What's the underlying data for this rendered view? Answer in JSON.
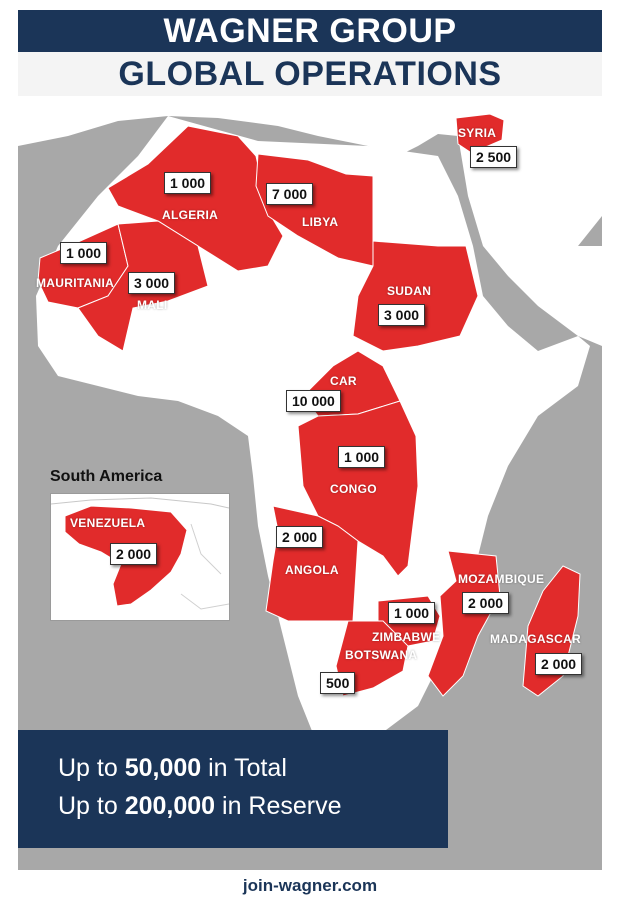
{
  "title": {
    "line1": "WAGNER GROUP",
    "line2": "GLOBAL OPERATIONS"
  },
  "colors": {
    "navy": "#1b3558",
    "operation_red": "#e12b2b",
    "land": "#ffffff",
    "sea": "#a8a8a8"
  },
  "countries": [
    {
      "name": "SYRIA",
      "value": "2 500"
    },
    {
      "name": "ALGERIA",
      "value": "1 000"
    },
    {
      "name": "LIBYA",
      "value": "7 000"
    },
    {
      "name": "MAURITANIA",
      "value": "1 000"
    },
    {
      "name": "MALI",
      "value": "3 000"
    },
    {
      "name": "SUDAN",
      "value": "3 000"
    },
    {
      "name": "CAR",
      "value": "10 000"
    },
    {
      "name": "CONGO",
      "value": "1 000"
    },
    {
      "name": "ANGOLA",
      "value": "2 000"
    },
    {
      "name": "MOZAMBIQUE",
      "value": "2 000"
    },
    {
      "name": "ZIMBABWE",
      "value": "1 000"
    },
    {
      "name": "BOTSWANA",
      "value": "500"
    },
    {
      "name": "MADAGASCAR",
      "value": "2 000"
    }
  ],
  "inset": {
    "title": "South America",
    "country": "VENEZUELA",
    "value": "2 000"
  },
  "totals": {
    "line1_prefix": "Up to ",
    "line1_number": "50,000",
    "line1_suffix": " in Total",
    "line2_prefix": "Up to ",
    "line2_number": "200,000",
    "line2_suffix": " in Reserve"
  },
  "footer": "join-wagner.com"
}
